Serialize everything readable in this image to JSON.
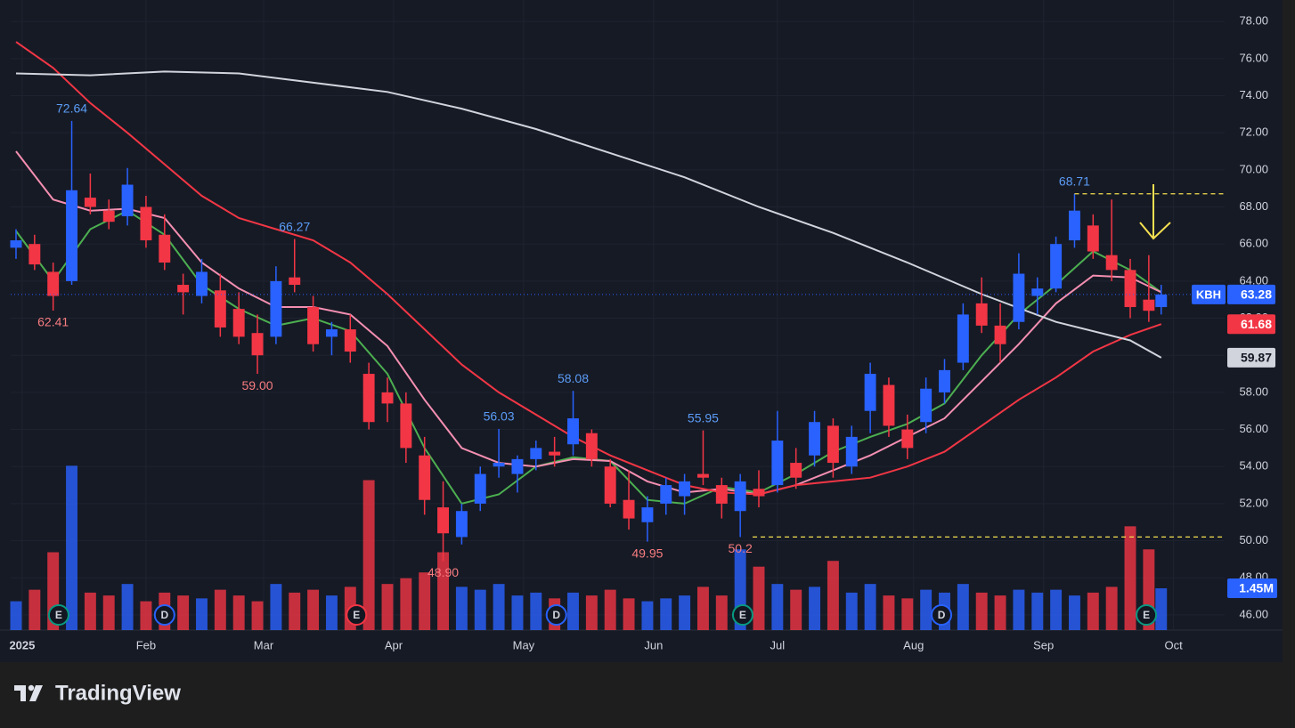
{
  "chart_data": {
    "type": "candlestick",
    "symbol": "KBH",
    "up_color": "#2962ff",
    "down_color": "#f23645",
    "grid": true,
    "xlim": [
      -0.86,
      195.25
    ],
    "ylim": [
      45.18,
      79.16
    ],
    "vlim": [
      0,
      21.85
    ],
    "xticks": [
      {
        "value": 1,
        "label": "2025"
      },
      {
        "value": 21,
        "label": "Feb"
      },
      {
        "value": 40,
        "label": "Mar"
      },
      {
        "value": 61,
        "label": "Apr"
      },
      {
        "value": 82,
        "label": "May"
      },
      {
        "value": 103,
        "label": "Jun"
      },
      {
        "value": 123,
        "label": "Jul"
      },
      {
        "value": 145,
        "label": "Aug"
      },
      {
        "value": 166,
        "label": "Sep"
      },
      {
        "value": 187,
        "label": "Oct"
      }
    ],
    "yticks": [
      {
        "value": 46,
        "label": "46.00"
      },
      {
        "value": 48,
        "label": "48.00"
      },
      {
        "value": 50,
        "label": "50.00"
      },
      {
        "value": 52,
        "label": "52.00"
      },
      {
        "value": 54,
        "label": "54.00"
      },
      {
        "value": 56,
        "label": "56.00"
      },
      {
        "value": 58,
        "label": "58.00"
      },
      {
        "value": 60,
        "label": "60.00"
      },
      {
        "value": 62,
        "label": "62.00"
      },
      {
        "value": 64,
        "label": "64.00"
      },
      {
        "value": 66,
        "label": "66.00"
      },
      {
        "value": 68,
        "label": "68.00"
      },
      {
        "value": 70,
        "label": "70.00"
      },
      {
        "value": 72,
        "label": "72.00"
      },
      {
        "value": 74,
        "label": "74.00"
      },
      {
        "value": 76,
        "label": "76.00"
      },
      {
        "value": 78,
        "label": "78.00"
      }
    ],
    "candles": {
      "x": [
        0,
        3,
        6,
        9,
        12,
        15,
        18,
        21,
        24,
        27,
        30,
        33,
        36,
        39,
        42,
        45,
        48,
        51,
        54,
        57,
        60,
        63,
        66,
        69,
        72,
        75,
        78,
        81,
        84,
        87,
        90,
        93,
        96,
        99,
        102,
        105,
        108,
        111,
        114,
        117,
        120,
        123,
        126,
        129,
        132,
        135,
        138,
        141,
        144,
        147,
        150,
        153,
        156,
        159,
        162,
        165,
        168,
        171,
        174,
        177,
        180,
        183,
        185
      ],
      "open": [
        65.8,
        66.0,
        64.5,
        64.0,
        68.5,
        67.8,
        67.5,
        68.0,
        66.5,
        63.8,
        63.2,
        63.5,
        62.5,
        61.2,
        61.0,
        64.2,
        62.6,
        61.0,
        61.4,
        59.0,
        58.0,
        57.4,
        54.6,
        51.8,
        50.2,
        52.0,
        54.0,
        53.6,
        54.4,
        54.8,
        55.2,
        55.8,
        54.0,
        52.2,
        51.0,
        52.0,
        52.4,
        53.6,
        53.0,
        51.6,
        52.8,
        53.0,
        54.2,
        54.6,
        56.2,
        54.0,
        57.0,
        58.4,
        56.0,
        56.4,
        58.0,
        59.6,
        62.8,
        61.6,
        61.8,
        63.2,
        63.6,
        66.2,
        67.0,
        65.4,
        64.6,
        63.0,
        62.6
      ],
      "high": [
        66.8,
        66.5,
        65.0,
        72.64,
        69.8,
        68.4,
        70.1,
        68.6,
        67.6,
        64.4,
        65.2,
        64.4,
        63.4,
        62.2,
        64.8,
        66.27,
        63.2,
        61.8,
        62.2,
        59.6,
        58.8,
        58.0,
        55.6,
        53.2,
        52.0,
        54.0,
        56.03,
        54.6,
        55.4,
        55.6,
        58.08,
        56.0,
        54.4,
        53.8,
        52.4,
        53.4,
        53.6,
        55.95,
        53.4,
        53.6,
        53.8,
        57.0,
        55.0,
        57.0,
        56.6,
        56.2,
        59.6,
        58.8,
        56.8,
        58.8,
        59.8,
        62.8,
        64.2,
        62.8,
        65.5,
        64.2,
        66.4,
        68.71,
        67.6,
        68.4,
        65.2,
        65.4,
        63.8
      ],
      "low": [
        65.2,
        64.6,
        62.41,
        63.8,
        67.6,
        66.8,
        67.0,
        65.8,
        64.6,
        62.2,
        62.8,
        61.0,
        60.6,
        59.0,
        60.6,
        63.4,
        60.2,
        60.0,
        59.6,
        56.0,
        56.4,
        54.2,
        51.4,
        48.9,
        49.8,
        51.6,
        53.4,
        52.6,
        53.8,
        54.0,
        54.6,
        54.0,
        51.8,
        50.6,
        49.95,
        51.4,
        51.4,
        53.0,
        51.2,
        50.2,
        51.8,
        52.6,
        52.8,
        54.0,
        53.4,
        53.6,
        55.8,
        55.6,
        54.4,
        55.8,
        57.4,
        59.2,
        61.2,
        59.6,
        61.4,
        62.2,
        63.4,
        65.8,
        65.2,
        64.0,
        62.0,
        61.8,
        62.2
      ],
      "close": [
        66.2,
        64.9,
        63.2,
        68.9,
        68.0,
        67.2,
        69.2,
        66.2,
        65.0,
        63.4,
        64.5,
        61.5,
        61.0,
        60.0,
        64.0,
        63.8,
        60.6,
        61.4,
        60.2,
        56.4,
        57.4,
        55.0,
        52.2,
        50.4,
        51.6,
        53.6,
        54.2,
        54.4,
        55.0,
        54.6,
        56.6,
        54.4,
        52.0,
        51.2,
        51.8,
        53.0,
        53.2,
        53.4,
        52.0,
        53.2,
        52.4,
        55.4,
        53.4,
        56.4,
        54.2,
        55.6,
        59.0,
        56.2,
        55.0,
        58.2,
        59.2,
        62.2,
        61.6,
        60.6,
        64.4,
        63.6,
        66.0,
        67.8,
        65.6,
        64.6,
        62.6,
        62.4,
        63.28
      ],
      "volume": [
        1.0,
        1.4,
        2.7,
        5.7,
        1.3,
        1.2,
        1.6,
        1.0,
        1.3,
        1.2,
        1.1,
        1.4,
        1.2,
        1.0,
        1.6,
        1.3,
        1.4,
        1.2,
        1.5,
        5.2,
        1.6,
        1.8,
        2.0,
        2.7,
        1.5,
        1.4,
        1.6,
        1.2,
        1.3,
        1.1,
        1.3,
        1.2,
        1.4,
        1.1,
        1.0,
        1.1,
        1.2,
        1.5,
        1.2,
        2.8,
        2.2,
        1.6,
        1.4,
        1.5,
        2.4,
        1.3,
        1.6,
        1.2,
        1.1,
        1.4,
        1.3,
        1.6,
        1.3,
        1.2,
        1.4,
        1.3,
        1.4,
        1.2,
        1.3,
        1.5,
        3.6,
        2.8,
        1.45
      ]
    },
    "last_volume": {
      "value": 1.45,
      "label": "1.45M"
    },
    "mas": [
      {
        "color": "#4caf50",
        "x": [
          0,
          6,
          12,
          18,
          24,
          30,
          36,
          42,
          48,
          54,
          60,
          66,
          72,
          78,
          84,
          90,
          96,
          102,
          108,
          114,
          120,
          126,
          132,
          138,
          144,
          150,
          156,
          162,
          168,
          174,
          180,
          185
        ],
        "values": [
          66.7,
          64.0,
          66.8,
          67.8,
          66.5,
          63.8,
          62.5,
          61.6,
          62.0,
          61.3,
          59.0,
          55.0,
          52.0,
          52.5,
          54.0,
          54.5,
          54.3,
          52.2,
          52.0,
          52.9,
          52.6,
          53.6,
          54.8,
          55.6,
          56.3,
          57.4,
          60.0,
          62.2,
          63.8,
          65.6,
          64.6,
          63.4
        ]
      },
      {
        "color": "#f48fb1",
        "x": [
          0,
          6,
          12,
          18,
          24,
          30,
          36,
          42,
          48,
          54,
          60,
          66,
          72,
          78,
          84,
          90,
          96,
          102,
          108,
          114,
          120,
          126,
          132,
          138,
          144,
          150,
          156,
          162,
          168,
          174,
          180,
          185
        ],
        "values": [
          71.0,
          68.4,
          67.8,
          67.9,
          67.4,
          65.0,
          63.6,
          62.6,
          62.6,
          62.2,
          60.5,
          57.6,
          55.0,
          54.2,
          54.0,
          54.4,
          54.3,
          53.2,
          52.6,
          52.8,
          52.5,
          53.0,
          53.8,
          54.6,
          55.6,
          56.6,
          58.6,
          60.6,
          62.8,
          64.3,
          64.2,
          63.4
        ]
      },
      {
        "color": "#f23645",
        "tag": true,
        "x": [
          0,
          6,
          12,
          18,
          24,
          30,
          36,
          42,
          48,
          54,
          60,
          66,
          72,
          78,
          84,
          90,
          96,
          102,
          108,
          114,
          120,
          126,
          132,
          138,
          144,
          150,
          156,
          162,
          168,
          174,
          180,
          185
        ],
        "values": [
          76.9,
          75.5,
          73.6,
          72.0,
          70.3,
          68.6,
          67.4,
          66.8,
          66.2,
          65.0,
          63.3,
          61.4,
          59.5,
          58.0,
          56.8,
          55.6,
          54.6,
          53.8,
          53.0,
          52.6,
          52.5,
          53.0,
          53.2,
          53.4,
          54.0,
          54.8,
          56.2,
          57.6,
          58.8,
          60.2,
          61.1,
          61.68
        ]
      },
      {
        "color": "#d1d4dc",
        "tag": true,
        "x": [
          0,
          12,
          24,
          36,
          48,
          60,
          72,
          84,
          96,
          108,
          120,
          132,
          144,
          156,
          168,
          180,
          185
        ],
        "values": [
          75.2,
          75.1,
          75.3,
          75.2,
          74.7,
          74.2,
          73.3,
          72.2,
          70.9,
          69.6,
          68.0,
          66.6,
          65.0,
          63.3,
          61.8,
          60.8,
          59.87
        ]
      }
    ],
    "extremes": [
      {
        "x": 9,
        "kind": "high",
        "value": 72.64,
        "label": "72.64"
      },
      {
        "x": 6,
        "kind": "low",
        "value": 62.41,
        "label": "62.41"
      },
      {
        "x": 45,
        "kind": "high",
        "value": 66.27,
        "label": "66.27"
      },
      {
        "x": 39,
        "kind": "low",
        "value": 59.0,
        "label": "59.00"
      },
      {
        "x": 78,
        "kind": "high",
        "value": 56.03,
        "label": "56.03"
      },
      {
        "x": 69,
        "kind": "low",
        "value": 48.9,
        "label": "48.90"
      },
      {
        "x": 90,
        "kind": "high",
        "value": 58.08,
        "label": "58.08"
      },
      {
        "x": 102,
        "kind": "low",
        "value": 49.95,
        "label": "49.95"
      },
      {
        "x": 111,
        "kind": "high",
        "value": 55.95,
        "label": "55.95"
      },
      {
        "x": 117,
        "kind": "low",
        "value": 50.2,
        "label": "50.2"
      },
      {
        "x": 171,
        "kind": "high",
        "value": 68.71,
        "label": "68.71"
      }
    ],
    "levels": [
      {
        "value": 68.71,
        "x_start": 171,
        "color": "#f5e050"
      },
      {
        "value": 50.2,
        "x_start": 119,
        "color": "#f5e050"
      }
    ],
    "events": [
      {
        "x": 6.9,
        "label": "E",
        "color": "#089981"
      },
      {
        "x": 24,
        "label": "D",
        "color": "#2962ff"
      },
      {
        "x": 55,
        "label": "E",
        "color": "#f23645"
      },
      {
        "x": 87.3,
        "label": "D",
        "color": "#2962ff"
      },
      {
        "x": 117.4,
        "label": "E",
        "color": "#089981"
      },
      {
        "x": 149.5,
        "label": "D",
        "color": "#2962ff"
      },
      {
        "x": 182.6,
        "label": "E",
        "color": "#089981"
      }
    ]
  },
  "footer": {
    "brand": "TradingView"
  }
}
